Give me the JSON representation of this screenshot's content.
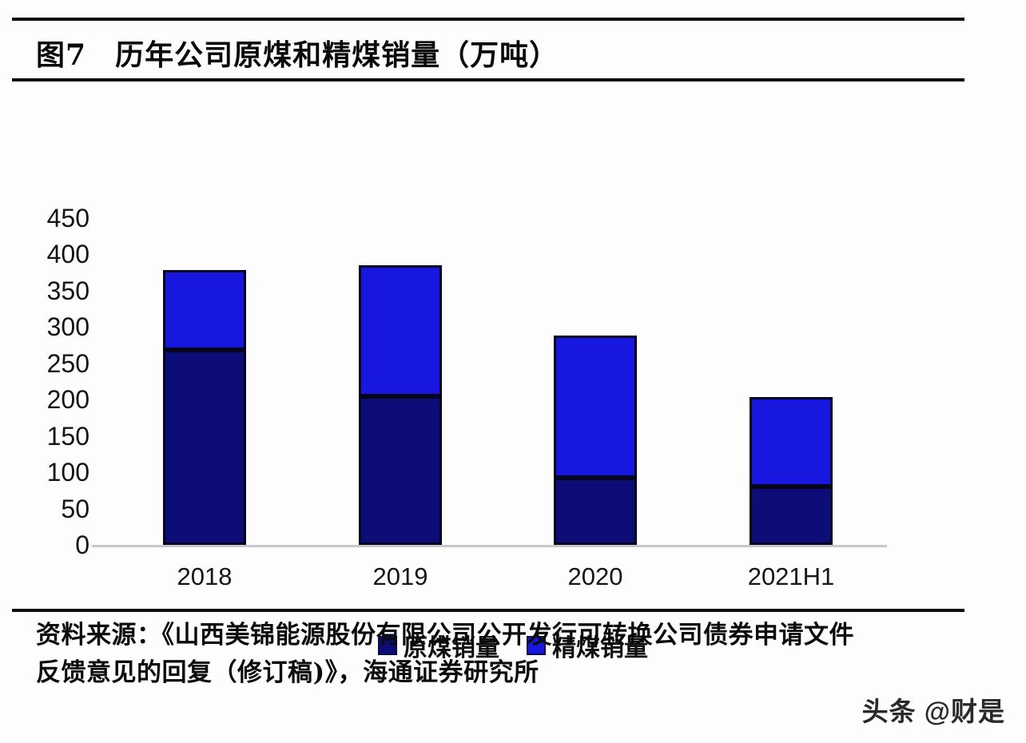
{
  "header": {
    "figure_no": "图7",
    "title": "历年公司原煤和精煤销量（万吨）"
  },
  "chart_data": {
    "type": "bar",
    "stacked": true,
    "title": "历年公司原煤和精煤销量（万吨）",
    "unit": "万吨",
    "categories": [
      "2018",
      "2019",
      "2020",
      "2021H1"
    ],
    "series": [
      {
        "name": "原煤销量",
        "color": "#0d0d78",
        "values": [
          268,
          205,
          92,
          80
        ]
      },
      {
        "name": "精煤销量",
        "color": "#1717e0",
        "values": [
          110,
          180,
          196,
          123
        ]
      }
    ],
    "totals": [
      378,
      385,
      288,
      203
    ],
    "ylim": [
      0,
      450
    ],
    "yticks": [
      0,
      50,
      100,
      150,
      200,
      250,
      300,
      350,
      400,
      450
    ],
    "grid": false,
    "legend_position": "bottom",
    "axis_color": "#c7c7cc",
    "bar_border_color": "#05051e"
  },
  "source": {
    "line1": "资料来源：《山西美锦能源股份有限公司公开发行可转换公司债券申请文件",
    "line2": "反馈意见的回复（修订稿)》，海通证券研究所"
  },
  "watermark": {
    "text": "头条 @财是"
  }
}
